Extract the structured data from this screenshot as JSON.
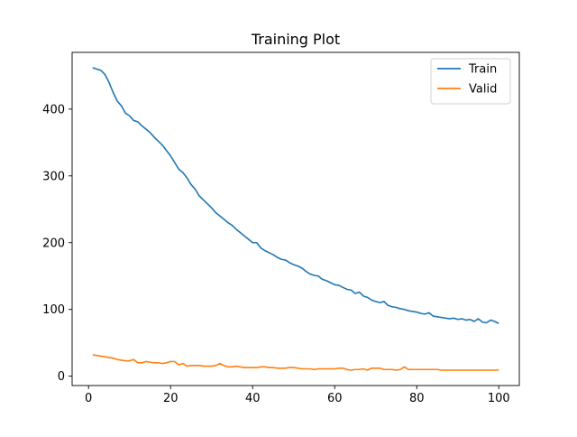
{
  "chart_data": {
    "type": "line",
    "title": "Training Plot",
    "xlabel": "",
    "ylabel": "",
    "xlim": [
      -4,
      105
    ],
    "ylim": [
      -14,
      485
    ],
    "xticks": [
      0,
      20,
      40,
      60,
      80,
      100
    ],
    "yticks": [
      0,
      100,
      200,
      300,
      400
    ],
    "grid": false,
    "legend_position": "top-right",
    "series": [
      {
        "name": "Train",
        "color": "#1f77b4",
        "points": [
          [
            1,
            462
          ],
          [
            3,
            458
          ],
          [
            4,
            452
          ],
          [
            5,
            440
          ],
          [
            6,
            425
          ],
          [
            7,
            412
          ],
          [
            8,
            405
          ],
          [
            9,
            394
          ],
          [
            10,
            390
          ],
          [
            11,
            383
          ],
          [
            12,
            381
          ],
          [
            13,
            375
          ],
          [
            14,
            370
          ],
          [
            15,
            365
          ],
          [
            16,
            358
          ],
          [
            17,
            352
          ],
          [
            18,
            346
          ],
          [
            19,
            338
          ],
          [
            20,
            330
          ],
          [
            21,
            320
          ],
          [
            22,
            310
          ],
          [
            23,
            305
          ],
          [
            24,
            297
          ],
          [
            25,
            287
          ],
          [
            26,
            280
          ],
          [
            27,
            270
          ],
          [
            28,
            264
          ],
          [
            29,
            258
          ],
          [
            30,
            252
          ],
          [
            31,
            245
          ],
          [
            32,
            240
          ],
          [
            33,
            235
          ],
          [
            34,
            230
          ],
          [
            35,
            226
          ],
          [
            36,
            220
          ],
          [
            37,
            215
          ],
          [
            38,
            210
          ],
          [
            39,
            205
          ],
          [
            40,
            200
          ],
          [
            41,
            200
          ],
          [
            42,
            192
          ],
          [
            43,
            188
          ],
          [
            44,
            185
          ],
          [
            45,
            182
          ],
          [
            46,
            178
          ],
          [
            47,
            175
          ],
          [
            48,
            174
          ],
          [
            49,
            170
          ],
          [
            50,
            167
          ],
          [
            51,
            165
          ],
          [
            52,
            162
          ],
          [
            53,
            157
          ],
          [
            54,
            153
          ],
          [
            55,
            151
          ],
          [
            56,
            150
          ],
          [
            57,
            145
          ],
          [
            58,
            143
          ],
          [
            59,
            140
          ],
          [
            60,
            137
          ],
          [
            61,
            136
          ],
          [
            62,
            133
          ],
          [
            63,
            130
          ],
          [
            64,
            129
          ],
          [
            65,
            124
          ],
          [
            66,
            126
          ],
          [
            67,
            120
          ],
          [
            68,
            118
          ],
          [
            69,
            114
          ],
          [
            70,
            112
          ],
          [
            71,
            110
          ],
          [
            72,
            112
          ],
          [
            73,
            106
          ],
          [
            74,
            104
          ],
          [
            75,
            103
          ],
          [
            76,
            101
          ],
          [
            77,
            100
          ],
          [
            78,
            98
          ],
          [
            79,
            97
          ],
          [
            80,
            96
          ],
          [
            81,
            94
          ],
          [
            82,
            93
          ],
          [
            83,
            95
          ],
          [
            84,
            90
          ],
          [
            85,
            89
          ],
          [
            86,
            88
          ],
          [
            87,
            87
          ],
          [
            88,
            86
          ],
          [
            89,
            87
          ],
          [
            90,
            85
          ],
          [
            91,
            86
          ],
          [
            92,
            84
          ],
          [
            93,
            85
          ],
          [
            94,
            82
          ],
          [
            95,
            86
          ],
          [
            96,
            81
          ],
          [
            97,
            80
          ],
          [
            98,
            84
          ],
          [
            99,
            82
          ],
          [
            100,
            79
          ]
        ]
      },
      {
        "name": "Valid",
        "color": "#ff7f0e",
        "points": [
          [
            1,
            32
          ],
          [
            2,
            31
          ],
          [
            3,
            30
          ],
          [
            4,
            29
          ],
          [
            5,
            28
          ],
          [
            6,
            27
          ],
          [
            7,
            25
          ],
          [
            8,
            24
          ],
          [
            9,
            23
          ],
          [
            10,
            23
          ],
          [
            11,
            25
          ],
          [
            12,
            20
          ],
          [
            13,
            20
          ],
          [
            14,
            22
          ],
          [
            15,
            21
          ],
          [
            16,
            20
          ],
          [
            17,
            20
          ],
          [
            18,
            19
          ],
          [
            19,
            20
          ],
          [
            20,
            22
          ],
          [
            21,
            22
          ],
          [
            22,
            17
          ],
          [
            23,
            19
          ],
          [
            24,
            15
          ],
          [
            25,
            16
          ],
          [
            26,
            16
          ],
          [
            27,
            16
          ],
          [
            28,
            15
          ],
          [
            29,
            15
          ],
          [
            30,
            15
          ],
          [
            31,
            16
          ],
          [
            32,
            19
          ],
          [
            33,
            16
          ],
          [
            34,
            14
          ],
          [
            35,
            14
          ],
          [
            36,
            15
          ],
          [
            37,
            14
          ],
          [
            38,
            13
          ],
          [
            39,
            13
          ],
          [
            40,
            13
          ],
          [
            41,
            13
          ],
          [
            42,
            14
          ],
          [
            43,
            14
          ],
          [
            44,
            13
          ],
          [
            45,
            13
          ],
          [
            46,
            12
          ],
          [
            47,
            12
          ],
          [
            48,
            12
          ],
          [
            49,
            13
          ],
          [
            50,
            13
          ],
          [
            51,
            12
          ],
          [
            52,
            11
          ],
          [
            53,
            11
          ],
          [
            54,
            11
          ],
          [
            55,
            10
          ],
          [
            56,
            11
          ],
          [
            57,
            11
          ],
          [
            58,
            11
          ],
          [
            59,
            11
          ],
          [
            60,
            11
          ],
          [
            61,
            12
          ],
          [
            62,
            12
          ],
          [
            63,
            10
          ],
          [
            64,
            9
          ],
          [
            65,
            10
          ],
          [
            66,
            10
          ],
          [
            67,
            11
          ],
          [
            68,
            9
          ],
          [
            69,
            12
          ],
          [
            70,
            12
          ],
          [
            71,
            12
          ],
          [
            72,
            10
          ],
          [
            73,
            10
          ],
          [
            74,
            10
          ],
          [
            75,
            9
          ],
          [
            76,
            10
          ],
          [
            77,
            14
          ],
          [
            78,
            10
          ],
          [
            79,
            10
          ],
          [
            80,
            10
          ],
          [
            81,
            10
          ],
          [
            82,
            10
          ],
          [
            83,
            10
          ],
          [
            84,
            10
          ],
          [
            85,
            10
          ],
          [
            86,
            9
          ],
          [
            87,
            9
          ],
          [
            88,
            9
          ],
          [
            89,
            9
          ],
          [
            90,
            9
          ],
          [
            91,
            9
          ],
          [
            92,
            9
          ],
          [
            93,
            9
          ],
          [
            94,
            9
          ],
          [
            95,
            9
          ],
          [
            96,
            9
          ],
          [
            97,
            9
          ],
          [
            98,
            9
          ],
          [
            99,
            9
          ],
          [
            100,
            9
          ]
        ]
      }
    ]
  }
}
